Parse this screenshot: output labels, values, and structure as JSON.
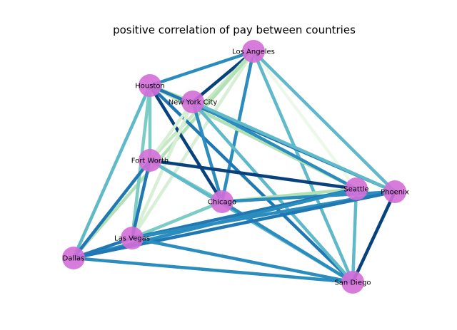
{
  "chart_data": {
    "type": "network",
    "title": "positive correlation of pay between countries",
    "node_color": "#d46ed8",
    "nodes": [
      {
        "id": "la",
        "label": "Los Angeles"
      },
      {
        "id": "hou",
        "label": "Houston"
      },
      {
        "id": "nyc",
        "label": "New York City"
      },
      {
        "id": "fw",
        "label": "Fort Worth"
      },
      {
        "id": "chi",
        "label": "Chicago"
      },
      {
        "id": "sea",
        "label": "Seattle"
      },
      {
        "id": "phx",
        "label": "Phoenix"
      },
      {
        "id": "lv",
        "label": "Las Vegas"
      },
      {
        "id": "dal",
        "label": "Dallas"
      },
      {
        "id": "sd",
        "label": "San Diego"
      }
    ],
    "edges": [
      {
        "source": "la",
        "target": "hou",
        "color": "#2b8cbe"
      },
      {
        "source": "la",
        "target": "nyc",
        "color": "#08427e"
      },
      {
        "source": "la",
        "target": "fw",
        "color": "#c6e8c4"
      },
      {
        "source": "la",
        "target": "chi",
        "color": "#2b8cbe"
      },
      {
        "source": "la",
        "target": "lv",
        "color": "#d7efd4"
      },
      {
        "source": "la",
        "target": "sea",
        "color": "#edf8ea"
      },
      {
        "source": "la",
        "target": "phx",
        "color": "#5fb9c8"
      },
      {
        "source": "la",
        "target": "sd",
        "color": "#5fb9c8"
      },
      {
        "source": "la",
        "target": "dal",
        "color": "#b3e1b6"
      },
      {
        "source": "hou",
        "target": "nyc",
        "color": "#b3e1b6"
      },
      {
        "source": "hou",
        "target": "fw",
        "color": "#7accc4"
      },
      {
        "source": "hou",
        "target": "lv",
        "color": "#7accc4"
      },
      {
        "source": "hou",
        "target": "dal",
        "color": "#5fb9c8"
      },
      {
        "source": "hou",
        "target": "chi",
        "color": "#08427e"
      },
      {
        "source": "hou",
        "target": "sea",
        "color": "#b3e1b6"
      },
      {
        "source": "hou",
        "target": "phx",
        "color": "#1f78b4"
      },
      {
        "source": "hou",
        "target": "sd",
        "color": "#1f78b4"
      },
      {
        "source": "nyc",
        "target": "fw",
        "color": "#d7efd4"
      },
      {
        "source": "nyc",
        "target": "chi",
        "color": "#2b8cbe"
      },
      {
        "source": "nyc",
        "target": "lv",
        "color": "#d7efd4"
      },
      {
        "source": "nyc",
        "target": "sea",
        "color": "#2b8cbe"
      },
      {
        "source": "nyc",
        "target": "phx",
        "color": "#5fb9c8"
      },
      {
        "source": "nyc",
        "target": "sd",
        "color": "#5fb9c8"
      },
      {
        "source": "fw",
        "target": "chi",
        "color": "#7accc4"
      },
      {
        "source": "fw",
        "target": "sea",
        "color": "#08427e"
      },
      {
        "source": "fw",
        "target": "lv",
        "color": "#1f78b4"
      },
      {
        "source": "fw",
        "target": "dal",
        "color": "#1f78b4"
      },
      {
        "source": "fw",
        "target": "sd",
        "color": "#5fb9c8"
      },
      {
        "source": "chi",
        "target": "sea",
        "color": "#b3e1b6"
      },
      {
        "source": "chi",
        "target": "phx",
        "color": "#2b8cbe"
      },
      {
        "source": "chi",
        "target": "lv",
        "color": "#7accc4"
      },
      {
        "source": "chi",
        "target": "sd",
        "color": "#2b8cbe"
      },
      {
        "source": "sea",
        "target": "sd",
        "color": "#5fb9c8"
      },
      {
        "source": "sea",
        "target": "lv",
        "color": "#1f78b4"
      },
      {
        "source": "sea",
        "target": "dal",
        "color": "#2b8cbe"
      },
      {
        "source": "phx",
        "target": "sd",
        "color": "#08427e"
      },
      {
        "source": "phx",
        "target": "lv",
        "color": "#2b8cbe"
      },
      {
        "source": "phx",
        "target": "dal",
        "color": "#1f78b4"
      },
      {
        "source": "lv",
        "target": "dal",
        "color": "#1f78b4"
      },
      {
        "source": "lv",
        "target": "sd",
        "color": "#2b8cbe"
      },
      {
        "source": "dal",
        "target": "sd",
        "color": "#2b8cbe"
      }
    ]
  }
}
